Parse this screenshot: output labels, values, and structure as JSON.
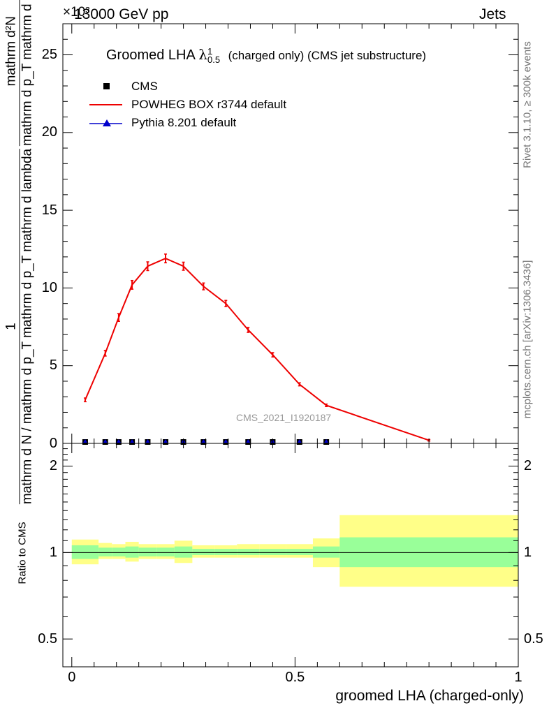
{
  "header": {
    "left": "13000 GeV pp",
    "right": "Jets",
    "exponent": "×10³",
    "analysis_tag": "CMS_2021_I1920187",
    "rivet": "Rivet 3.1.10, ≥ 300k events",
    "mcplots": "mcplots.cern.ch [arXiv:1306.3436]"
  },
  "colors": {
    "powheg": "#ee0000",
    "pythia": "#0000cc",
    "data": "#000000",
    "band_inner": "#99ff99",
    "band_outer": "#ffff88"
  },
  "legend": {
    "title_main": "Groomed LHA",
    "title_lambda": "λ",
    "title_sup": "1",
    "title_sub": "0.5",
    "title_rest": "(charged only) (CMS jet substructure)",
    "entries": [
      {
        "label": "CMS",
        "marker": "square"
      },
      {
        "label": "POWHEG BOX r3744 default",
        "marker": "line"
      },
      {
        "label": "Pythia 8.201 default",
        "marker": "triangle"
      }
    ]
  },
  "yaxis_title": {
    "numerator_1": "1",
    "denominator_1": "mathrm d N / mathrm d p_T mathrm d p_T mathrm d lambda",
    "numerator_2": "mathrm d²N",
    "denominator_2": "mathrm d p_T mathrm d lambda"
  },
  "ratio_ylabel": "Ratio to CMS",
  "chart_data": [
    {
      "type": "line",
      "panel": "main",
      "xlabel": "groomed LHA (charged-only)",
      "ylim": [
        0,
        27
      ],
      "xlim": [
        -0.02,
        1.0
      ],
      "y_ticks": [
        0,
        5,
        10,
        15,
        20,
        25
      ],
      "y_tick_labels": [
        "0",
        "5",
        "10",
        "15",
        "20",
        "25"
      ],
      "bin_edges": [
        0.0,
        0.06,
        0.09,
        0.12,
        0.15,
        0.19,
        0.23,
        0.27,
        0.32,
        0.37,
        0.42,
        0.48,
        0.54,
        0.6,
        1.0
      ],
      "series": [
        {
          "name": "POWHEG BOX r3744 default",
          "x": [
            0.03,
            0.075,
            0.105,
            0.135,
            0.17,
            0.21,
            0.25,
            0.295,
            0.345,
            0.395,
            0.45,
            0.51,
            0.57,
            0.8
          ],
          "values": [
            2.8,
            5.8,
            8.1,
            10.2,
            11.4,
            11.9,
            11.4,
            10.1,
            9.0,
            7.3,
            5.7,
            3.8,
            2.45,
            0.2
          ],
          "errors": [
            0.12,
            0.18,
            0.25,
            0.28,
            0.28,
            0.28,
            0.26,
            0.22,
            0.2,
            0.16,
            0.14,
            0.1,
            0.08,
            0.05
          ]
        },
        {
          "name": "CMS",
          "x": [
            0.03,
            0.075,
            0.105,
            0.135,
            0.17,
            0.21,
            0.25,
            0.295,
            0.345,
            0.395,
            0.45,
            0.51,
            0.57
          ],
          "values": [
            0.012,
            0.02,
            0.025,
            0.028,
            0.03,
            0.03,
            0.029,
            0.026,
            0.023,
            0.019,
            0.015,
            0.011,
            0.007
          ]
        }
      ]
    },
    {
      "type": "area",
      "panel": "ratio",
      "xlabel": "groomed LHA (charged-only)",
      "ylabel": "Ratio to CMS",
      "log_scale": true,
      "ylim": [
        0.4,
        2.4
      ],
      "y_ticks": [
        0.5,
        1,
        2
      ],
      "y_tick_labels": [
        "0.5",
        "1",
        "2"
      ],
      "x_ticks": [
        0,
        0.5,
        1
      ],
      "x_tick_labels": [
        "0",
        "0.5",
        "1"
      ],
      "bin_edges": [
        0.0,
        0.06,
        0.09,
        0.12,
        0.15,
        0.19,
        0.23,
        0.27,
        0.32,
        0.37,
        0.42,
        0.48,
        0.54,
        0.6,
        1.0
      ],
      "inner_lo": [
        0.95,
        0.97,
        0.97,
        0.96,
        0.97,
        0.97,
        0.96,
        0.98,
        0.98,
        0.98,
        0.98,
        0.98,
        0.96,
        0.89
      ],
      "inner_hi": [
        1.06,
        1.04,
        1.04,
        1.05,
        1.04,
        1.04,
        1.05,
        1.03,
        1.03,
        1.03,
        1.03,
        1.03,
        1.05,
        1.13
      ],
      "outer_lo": [
        0.91,
        0.95,
        0.95,
        0.93,
        0.95,
        0.95,
        0.92,
        0.96,
        0.96,
        0.96,
        0.96,
        0.96,
        0.89,
        0.76
      ],
      "outer_hi": [
        1.11,
        1.08,
        1.07,
        1.09,
        1.07,
        1.07,
        1.1,
        1.06,
        1.06,
        1.07,
        1.07,
        1.07,
        1.12,
        1.35
      ]
    }
  ]
}
